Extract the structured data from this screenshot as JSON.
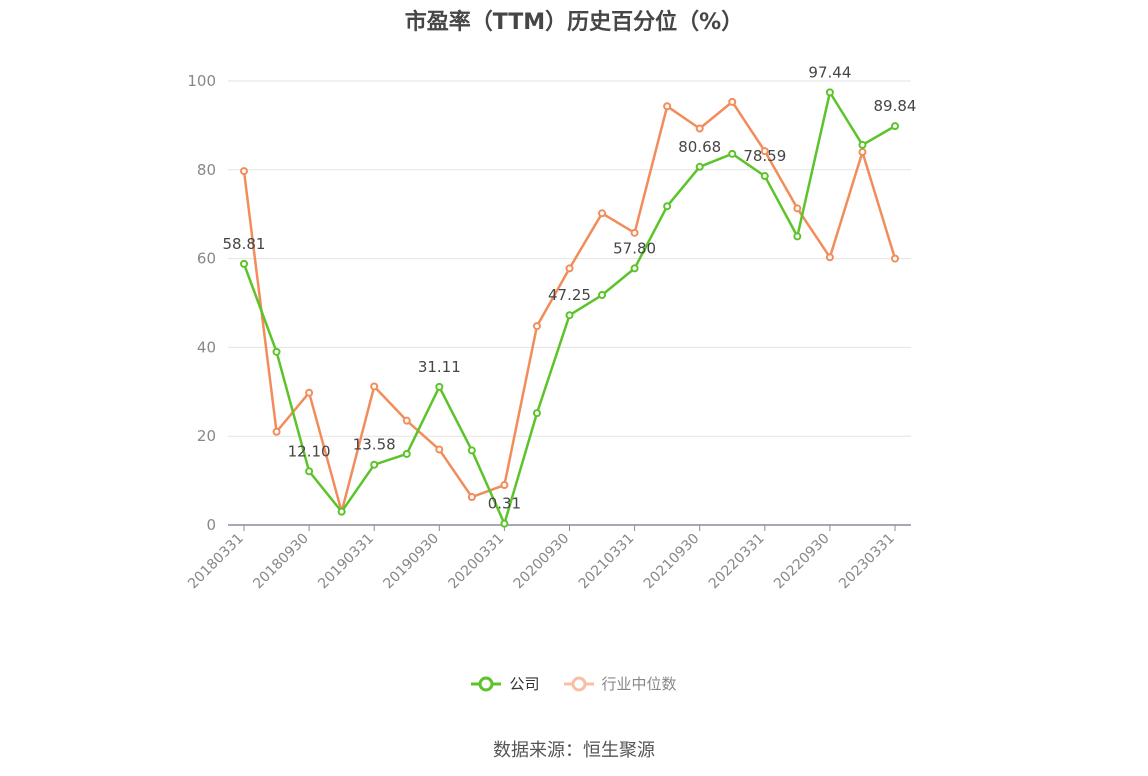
{
  "chart_data": {
    "type": "line",
    "title": "市盈率（TTM）历史百分位（%）",
    "categories": [
      "20180331",
      "20180630",
      "20180930",
      "20181231",
      "20190331",
      "20190630",
      "20190930",
      "20191231",
      "20200331",
      "20200630",
      "20200930",
      "20201231",
      "20210331",
      "20210630",
      "20210930",
      "20211231",
      "20220331",
      "20220630",
      "20220930",
      "20221231",
      "20230331"
    ],
    "x_tick_labels": [
      "20180331",
      "20180930",
      "20190331",
      "20190930",
      "20200331",
      "20200930",
      "20210331",
      "20210930",
      "20220331",
      "20220930",
      "20230331"
    ],
    "ylim": [
      0,
      100
    ],
    "yticks": [
      0,
      20,
      40,
      60,
      80,
      100
    ],
    "grid": true,
    "legend_position": "bottom",
    "series": [
      {
        "name": "公司",
        "color": "#5cc42a",
        "values": [
          58.81,
          39.0,
          12.1,
          3.0,
          13.58,
          16.0,
          31.11,
          16.8,
          0.31,
          25.2,
          47.25,
          51.8,
          57.8,
          71.8,
          80.68,
          83.6,
          78.59,
          65.0,
          97.44,
          85.6,
          89.84
        ],
        "labeled_indices": [
          0,
          2,
          4,
          6,
          8,
          10,
          12,
          14,
          16,
          18,
          20
        ],
        "data_labels": [
          "58.81",
          "12.10",
          "13.58",
          "31.11",
          "0.31",
          "47.25",
          "57.80",
          "80.68",
          "78.59",
          "97.44",
          "89.84"
        ]
      },
      {
        "name": "行业中位数",
        "color": "#f28c5a",
        "values": [
          79.7,
          21.0,
          29.8,
          3.0,
          31.2,
          23.5,
          17.0,
          6.3,
          9.0,
          44.8,
          57.8,
          70.2,
          65.8,
          94.3,
          89.3,
          95.3,
          84.2,
          71.3,
          60.3,
          84.0,
          60.0
        ]
      }
    ]
  },
  "source_text": "数据来源：恒生聚源"
}
